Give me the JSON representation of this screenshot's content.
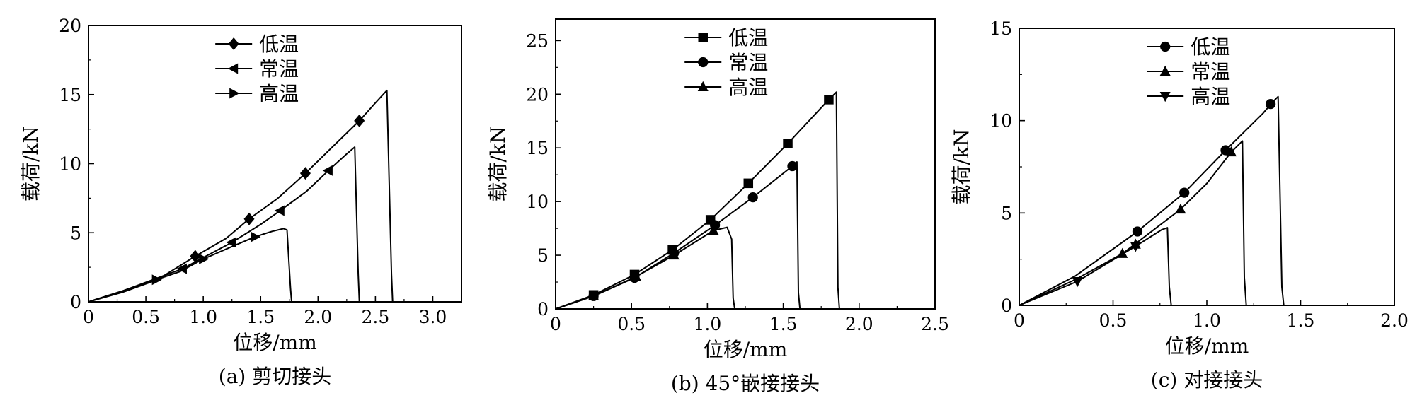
{
  "chart_data": [
    {
      "type": "line",
      "caption": "(a) 剪切接头",
      "xlabel": "位移/mm",
      "ylabel": "载荷/kN",
      "xlim": [
        0,
        3.25
      ],
      "ylim": [
        0,
        20
      ],
      "xticks": [
        0,
        0.5,
        1.0,
        1.5,
        2.0,
        2.5,
        3.0
      ],
      "xtick_labels": [
        "0",
        "0.5",
        "1.0",
        "1.5",
        "2.0",
        "2.5",
        "3.0"
      ],
      "yticks": [
        0,
        5,
        10,
        15,
        20
      ],
      "ytick_labels": [
        "0",
        "5",
        "10",
        "15",
        "20"
      ],
      "legend_position": "top-center",
      "series": [
        {
          "name": "低温",
          "marker": "diamond",
          "x": [
            0,
            0.3,
            0.6,
            0.93,
            1.2,
            1.4,
            1.65,
            1.89,
            2.1,
            2.36,
            2.5,
            2.6,
            2.64,
            2.65
          ],
          "y": [
            0,
            0.7,
            1.6,
            3.3,
            4.6,
            6.0,
            7.5,
            9.3,
            11.0,
            13.1,
            14.4,
            15.3,
            2.0,
            0
          ],
          "marker_points": [
            [
              0.93,
              3.3
            ],
            [
              1.4,
              6.0
            ],
            [
              1.89,
              9.3
            ],
            [
              2.36,
              13.1
            ]
          ]
        },
        {
          "name": "常温",
          "marker": "triangle-left",
          "x": [
            0,
            0.3,
            0.82,
            1.0,
            1.25,
            1.5,
            1.67,
            1.9,
            2.09,
            2.25,
            2.32,
            2.35,
            2.36
          ],
          "y": [
            0,
            0.8,
            2.4,
            3.2,
            4.3,
            5.6,
            6.6,
            8.0,
            9.5,
            10.7,
            11.2,
            2.0,
            0
          ],
          "marker_points": [
            [
              0.82,
              2.4
            ],
            [
              1.25,
              4.3
            ],
            [
              1.67,
              6.6
            ],
            [
              2.09,
              9.5
            ]
          ]
        },
        {
          "name": "高温",
          "marker": "triangle-right",
          "x": [
            0,
            0.3,
            0.59,
            0.8,
            1.0,
            1.25,
            1.45,
            1.6,
            1.7,
            1.73,
            1.76,
            1.77
          ],
          "y": [
            0,
            0.8,
            1.6,
            2.2,
            3.1,
            4.0,
            4.7,
            5.1,
            5.3,
            5.2,
            1.0,
            0
          ],
          "marker_points": [
            [
              0.59,
              1.6
            ],
            [
              1.0,
              3.1
            ],
            [
              1.45,
              4.7
            ]
          ]
        }
      ]
    },
    {
      "type": "line",
      "caption": "(b) 45°嵌接接头",
      "xlabel": "位移/mm",
      "ylabel": "载荷/kN",
      "xlim": [
        0,
        2.5
      ],
      "ylim": [
        0,
        27
      ],
      "xticks": [
        0,
        0.5,
        1.0,
        1.5,
        2.0,
        2.5
      ],
      "xtick_labels": [
        "0",
        "0.5",
        "1.0",
        "1.5",
        "2.0",
        "2.5"
      ],
      "yticks": [
        0,
        5,
        10,
        15,
        20,
        25
      ],
      "ytick_labels": [
        "0",
        "5",
        "10",
        "15",
        "20",
        "25"
      ],
      "legend_position": "top-center",
      "series": [
        {
          "name": "低温",
          "marker": "square",
          "x": [
            0,
            0.25,
            0.52,
            0.77,
            1.02,
            1.27,
            1.53,
            1.8,
            1.85,
            1.86,
            1.87
          ],
          "y": [
            0,
            1.3,
            3.2,
            5.5,
            8.3,
            11.7,
            15.4,
            19.5,
            20.2,
            2.0,
            0
          ],
          "marker_points": [
            [
              0.25,
              1.3
            ],
            [
              0.52,
              3.2
            ],
            [
              0.77,
              5.5
            ],
            [
              1.02,
              8.3
            ],
            [
              1.27,
              11.7
            ],
            [
              1.53,
              15.4
            ],
            [
              1.8,
              19.5
            ]
          ]
        },
        {
          "name": "常温",
          "marker": "circle",
          "x": [
            0,
            0.25,
            0.52,
            0.78,
            1.05,
            1.3,
            1.56,
            1.59,
            1.6,
            1.61
          ],
          "y": [
            0,
            1.2,
            2.9,
            5.2,
            7.8,
            10.4,
            13.3,
            13.7,
            1.5,
            0
          ],
          "marker_points": [
            [
              0.25,
              1.2
            ],
            [
              0.52,
              2.9
            ],
            [
              0.78,
              5.2
            ],
            [
              1.05,
              7.8
            ],
            [
              1.3,
              10.4
            ],
            [
              1.56,
              13.3
            ]
          ]
        },
        {
          "name": "高温",
          "marker": "triangle-up",
          "x": [
            0,
            0.25,
            0.53,
            0.78,
            1.04,
            1.13,
            1.16,
            1.17,
            1.18
          ],
          "y": [
            0,
            1.2,
            3.0,
            5.0,
            7.3,
            7.6,
            6.5,
            1.0,
            0
          ],
          "marker_points": [
            [
              0.25,
              1.2
            ],
            [
              0.53,
              3.0
            ],
            [
              0.78,
              5.0
            ],
            [
              1.04,
              7.3
            ]
          ]
        }
      ]
    },
    {
      "type": "line",
      "caption": "(c) 对接接头",
      "xlabel": "位移/mm",
      "ylabel": "载荷/kN",
      "xlim": [
        0,
        2.0
      ],
      "ylim": [
        0,
        15
      ],
      "xticks": [
        0,
        0.5,
        1.0,
        1.5,
        2.0
      ],
      "xtick_labels": [
        "0",
        "0.5",
        "1.0",
        "1.5",
        "2.0"
      ],
      "yticks": [
        0,
        5,
        10,
        15
      ],
      "ytick_labels": [
        "0",
        "5",
        "10",
        "15"
      ],
      "legend_position": "top-center",
      "series": [
        {
          "name": "低温",
          "marker": "circle",
          "x": [
            0,
            0.3,
            0.63,
            0.88,
            1.1,
            1.3,
            1.35,
            1.38,
            1.4,
            1.41
          ],
          "y": [
            0,
            1.6,
            4.0,
            6.1,
            8.4,
            10.4,
            11.0,
            11.3,
            1.0,
            0
          ],
          "marker_points": [
            [
              0.63,
              4.0
            ],
            [
              0.88,
              6.1
            ],
            [
              1.1,
              8.4
            ],
            [
              1.34,
              10.9
            ]
          ]
        },
        {
          "name": "常温",
          "marker": "triangle-up",
          "x": [
            0,
            0.3,
            0.55,
            0.86,
            1.0,
            1.13,
            1.19,
            1.2,
            1.21
          ],
          "y": [
            0,
            1.4,
            2.8,
            5.2,
            6.6,
            8.3,
            8.9,
            1.5,
            0
          ],
          "marker_points": [
            [
              0.55,
              2.8
            ],
            [
              0.62,
              3.3
            ],
            [
              0.86,
              5.2
            ],
            [
              1.13,
              8.3
            ]
          ]
        },
        {
          "name": "高温",
          "marker": "triangle-down",
          "x": [
            0,
            0.31,
            0.62,
            0.76,
            0.79,
            0.8,
            0.81
          ],
          "y": [
            0,
            1.3,
            3.2,
            4.1,
            4.2,
            1.0,
            0
          ],
          "marker_points": [
            [
              0.31,
              1.3
            ],
            [
              0.62,
              3.2
            ]
          ]
        }
      ]
    }
  ]
}
